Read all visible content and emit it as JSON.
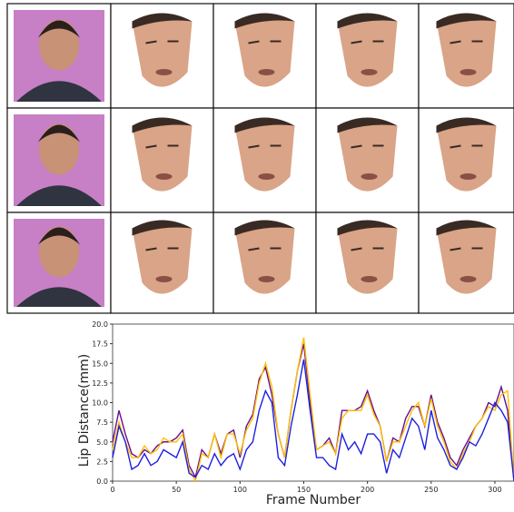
{
  "chart_data": {
    "type": "line",
    "x_label": "Frame Number",
    "y_label": "Lip Distance(mm)",
    "x": [
      0,
      5,
      10,
      15,
      20,
      25,
      30,
      35,
      40,
      45,
      50,
      55,
      60,
      65,
      70,
      75,
      80,
      85,
      90,
      95,
      100,
      105,
      110,
      115,
      120,
      125,
      130,
      135,
      140,
      145,
      150,
      155,
      160,
      165,
      170,
      175,
      180,
      185,
      190,
      195,
      200,
      205,
      210,
      215,
      220,
      225,
      230,
      235,
      240,
      245,
      250,
      255,
      260,
      265,
      270,
      275,
      280,
      285,
      290,
      295,
      300,
      305,
      310,
      315
    ],
    "series": [
      {
        "color": "#6a0d91",
        "values": [
          5,
          9,
          6,
          3.5,
          3,
          4,
          3.5,
          4.5,
          5,
          5,
          5.5,
          6.5,
          2,
          0.5,
          4,
          3,
          6,
          3.5,
          6,
          6.5,
          3,
          7,
          8.5,
          13,
          14.5,
          11,
          6,
          3,
          9,
          14,
          17.5,
          10,
          4,
          4.5,
          5.5,
          3.5,
          9,
          9,
          9,
          9.5,
          11.5,
          9,
          7,
          2.5,
          5.5,
          5,
          8,
          9.5,
          9.5,
          7,
          11,
          7.5,
          5.5,
          3,
          2,
          4,
          5.5,
          7,
          8,
          10,
          9.5,
          12,
          9,
          0
        ]
      },
      {
        "color": "#ffc000",
        "values": [
          4,
          7.5,
          5,
          3,
          3,
          4.5,
          3.5,
          4,
          5.5,
          5,
          5,
          6,
          1.5,
          0,
          3.5,
          3,
          6,
          3,
          6,
          6,
          3.5,
          6.5,
          8,
          12.5,
          15,
          12,
          6,
          3,
          9,
          14,
          18.3,
          11,
          4,
          4.5,
          5,
          3.5,
          8,
          9,
          9,
          9,
          11,
          8.5,
          7,
          2.5,
          5,
          5,
          7,
          9,
          10,
          7,
          10.5,
          7,
          5,
          2.5,
          1.5,
          3.5,
          5,
          7,
          8,
          9.5,
          9,
          11,
          11.5,
          0
        ]
      },
      {
        "color": "#1f1fe0",
        "values": [
          3,
          7,
          5,
          1.5,
          2,
          3.5,
          2,
          2.5,
          4,
          3.5,
          3,
          5,
          1,
          0.5,
          2,
          1.5,
          3.5,
          2,
          3,
          3.5,
          1.5,
          4,
          5,
          9,
          11.5,
          10,
          3,
          2,
          7,
          11,
          15.5,
          9,
          3,
          3,
          2,
          1.5,
          6,
          4,
          5,
          3.5,
          6,
          6,
          5,
          1,
          4,
          3,
          5.5,
          8,
          7,
          4,
          9,
          5.5,
          4,
          2,
          1.5,
          3,
          5,
          4.5,
          6,
          8,
          10,
          9,
          7.5,
          0
        ]
      }
    ],
    "xlim": [
      0,
      315
    ],
    "xticks": [
      0,
      50,
      100,
      150,
      200,
      250,
      300
    ],
    "ylim": [
      0,
      20
    ],
    "yticks": [
      {
        "value": 0,
        "label": "0.0"
      },
      {
        "value": 2.5,
        "label": "2.5"
      },
      {
        "value": 5,
        "label": "5.0"
      },
      {
        "value": 7.5,
        "label": "7.5"
      },
      {
        "value": 10,
        "label": "10.0"
      },
      {
        "value": 12.5,
        "label": "12.5"
      },
      {
        "value": 15,
        "label": "15.0"
      },
      {
        "value": 17.5,
        "label": "17.5"
      },
      {
        "value": 20,
        "label": "20.0"
      }
    ]
  }
}
